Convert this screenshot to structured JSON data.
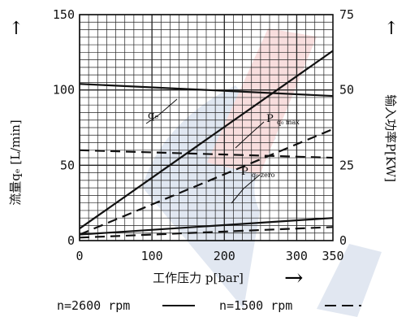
{
  "chart_data": {
    "type": "line",
    "title": "",
    "xlabel": "工作压力 p[bar]",
    "ylabel_left": "流量qₑ [L/min]",
    "ylabel_right": "输入功率P[KW]",
    "xlim": [
      0,
      350
    ],
    "ylim_left": [
      0,
      150
    ],
    "ylim_right": [
      0,
      75
    ],
    "x_ticks": [
      0,
      100,
      200,
      300,
      350
    ],
    "y_left_ticks": [
      0,
      50,
      100,
      150
    ],
    "y_right_ticks": [
      0,
      25,
      50,
      75
    ],
    "grid": true,
    "series": [
      {
        "name": "qₑ",
        "axis": "left",
        "style": "solid",
        "x": [
          0,
          350
        ],
        "y": [
          104,
          96
        ]
      },
      {
        "name": "qₑ",
        "axis": "left",
        "style": "dashed",
        "x": [
          0,
          350
        ],
        "y": [
          60,
          55
        ]
      },
      {
        "name": "P_q_max",
        "axis": "right",
        "style": "solid",
        "x": [
          0,
          350
        ],
        "y": [
          4,
          63
        ]
      },
      {
        "name": "P_q_max",
        "axis": "right",
        "style": "dashed",
        "x": [
          0,
          350
        ],
        "y": [
          2,
          37
        ]
      },
      {
        "name": "P_q_zero",
        "axis": "right",
        "style": "solid",
        "x": [
          0,
          350
        ],
        "y": [
          2,
          7.5
        ]
      },
      {
        "name": "P_q_zero",
        "axis": "right",
        "style": "dashed",
        "x": [
          0,
          350
        ],
        "y": [
          1,
          4.5
        ]
      }
    ],
    "annotations": {
      "q_label": "qₑ",
      "pmax_main": "P",
      "pmax_sub": "q₀ max",
      "pzero_main": "P",
      "pzero_sub": "q₀ zero"
    },
    "legend": [
      {
        "label": "n=2600 rpm",
        "style": "solid"
      },
      {
        "label": "n=1500 rpm",
        "style": "dashed"
      }
    ],
    "legend_placement": "bottom",
    "colors": {
      "line": "#111111",
      "grid": "#222222",
      "watermark_red": "#f0b0b0",
      "watermark_blue": "#c8d4e6"
    }
  }
}
